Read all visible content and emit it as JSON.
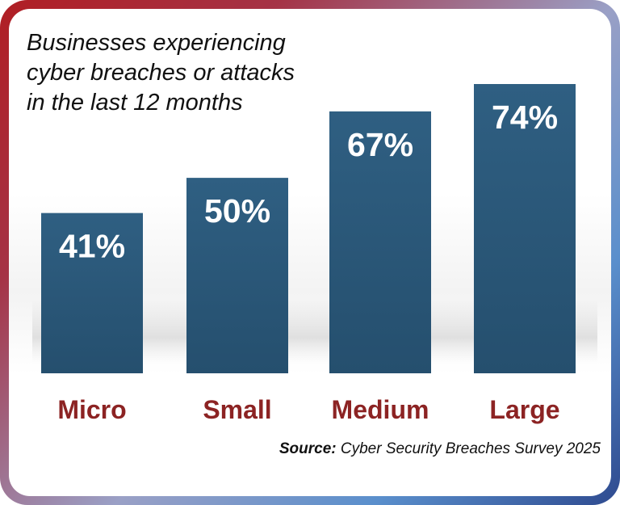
{
  "chart_data": {
    "type": "bar",
    "title_lines": [
      "Businesses experiencing",
      "cyber breaches or attacks",
      "in the last 12 months"
    ],
    "categories": [
      "Micro",
      "Small",
      "Medium",
      "Large"
    ],
    "values": [
      41,
      50,
      67,
      74
    ],
    "value_labels": [
      "41%",
      "50%",
      "67%",
      "74%"
    ],
    "ylim": [
      0,
      80
    ],
    "grid": false,
    "legend": "none",
    "bar_color": "#2c5879",
    "label_color": "#8c2323"
  },
  "source": {
    "label": "Source:",
    "text": " Cyber Security Breaches Survey 2025"
  }
}
